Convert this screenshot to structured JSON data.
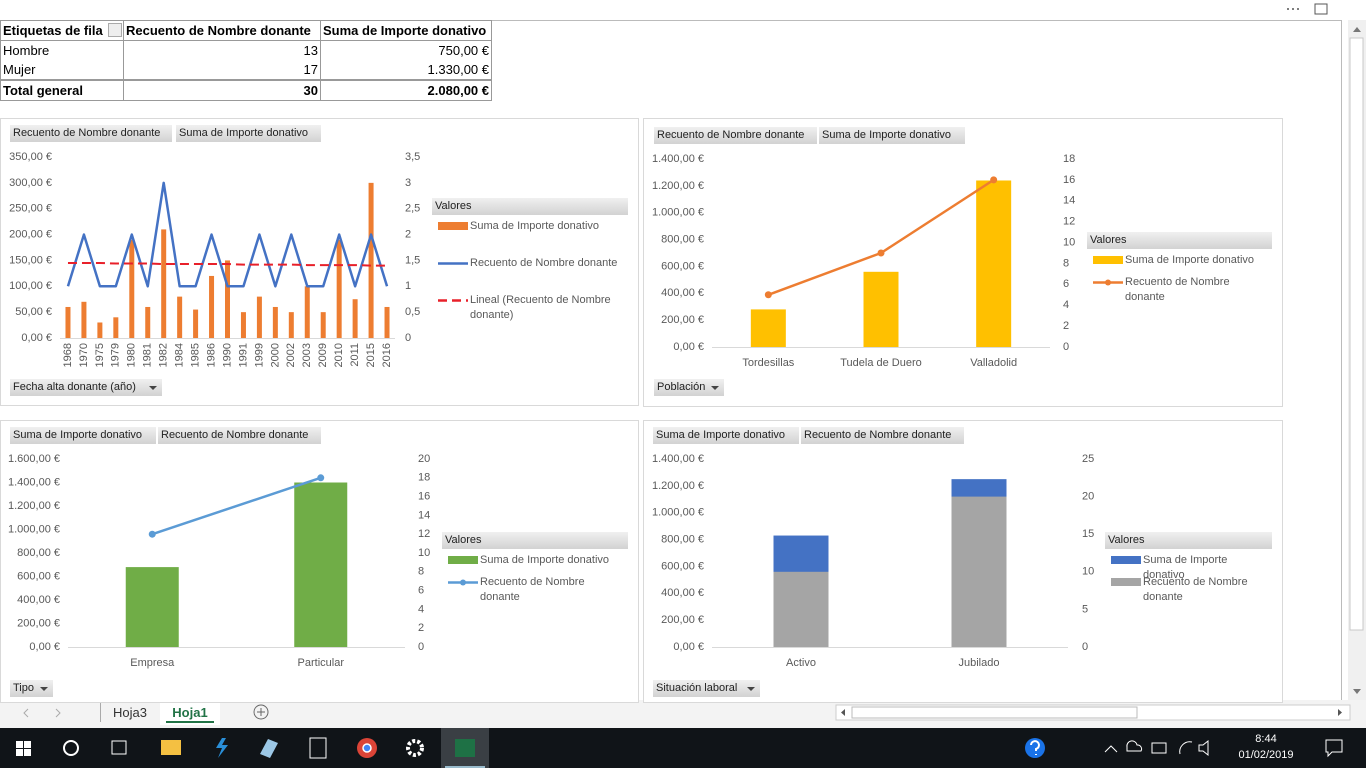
{
  "table": {
    "header": [
      "Etiquetas de fila",
      "Recuento de Nombre donante",
      "Suma de Importe donativo"
    ],
    "rows": [
      [
        "Hombre",
        "13",
        "750,00 €"
      ],
      [
        "Mujer",
        "17",
        "1.330,00 €"
      ],
      [
        "Total general",
        "30",
        "2.080,00 €"
      ]
    ]
  },
  "chart_data": [
    {
      "type": "combo",
      "field_buttons": [
        "Recuento de Nombre donante",
        "Suma de Importe donativo"
      ],
      "filter": "Fecha alta donante (año)",
      "legend_title": "Valores",
      "categories": [
        "1968",
        "1970",
        "1975",
        "1979",
        "1980",
        "1981",
        "1982",
        "1984",
        "1985",
        "1986",
        "1990",
        "1991",
        "1999",
        "2000",
        "2002",
        "2003",
        "2009",
        "2010",
        "2011",
        "2015",
        "2016"
      ],
      "series": [
        {
          "name": "Suma de Importe donativo",
          "type": "bar",
          "color": "#ed7d31",
          "axis": "y",
          "values": [
            60,
            70,
            30,
            40,
            190,
            60,
            210,
            80,
            55,
            120,
            150,
            50,
            80,
            60,
            50,
            100,
            50,
            190,
            75,
            300,
            60
          ]
        },
        {
          "name": "Recuento de Nombre donante",
          "type": "line",
          "color": "#4472c4",
          "axis": "y2",
          "values": [
            1,
            2,
            1,
            1,
            2,
            1,
            3,
            1,
            1,
            2,
            1,
            1,
            2,
            1,
            2,
            1,
            1,
            2,
            1,
            2,
            1
          ]
        },
        {
          "name": "Lineal (Recuento de Nombre donante)",
          "type": "line",
          "color": "#e8202a",
          "dash": true,
          "axis": "y2",
          "values": [
            1.45,
            1.45,
            1.45,
            1.44,
            1.44,
            1.44,
            1.43,
            1.43,
            1.43,
            1.43,
            1.43,
            1.42,
            1.42,
            1.42,
            1.42,
            1.41,
            1.41,
            1.41,
            1.41,
            1.4,
            1.4
          ]
        }
      ],
      "ylim": [
        0,
        350
      ],
      "yticks": [
        {
          "value": 0,
          "label": "0,00 €"
        },
        {
          "value": 50,
          "label": "50,00 €"
        },
        {
          "value": 100,
          "label": "100,00 €"
        },
        {
          "value": 150,
          "label": "150,00 €"
        },
        {
          "value": 200,
          "label": "200,00 €"
        },
        {
          "value": 250,
          "label": "250,00 €"
        },
        {
          "value": 300,
          "label": "300,00 €"
        },
        {
          "value": 350,
          "label": "350,00 €"
        }
      ],
      "y2lim": [
        0,
        3.5
      ],
      "y2ticks": [
        0,
        {
          "value": 0.5,
          "label": "0,5"
        },
        1,
        {
          "value": 1.5,
          "label": "1,5"
        },
        2,
        {
          "value": 2.5,
          "label": "2,5"
        },
        3,
        {
          "value": 3.5,
          "label": "3,5"
        }
      ]
    },
    {
      "type": "combo",
      "field_buttons": [
        "Recuento de Nombre donante",
        "Suma de Importe donativo"
      ],
      "filter": "Población",
      "legend_title": "Valores",
      "categories": [
        "Tordesillas",
        "Tudela de Duero",
        "Valladolid"
      ],
      "series": [
        {
          "name": "Suma de Importe donativo",
          "type": "bar",
          "color": "#ffc000",
          "axis": "y",
          "values": [
            280,
            560,
            1240
          ]
        },
        {
          "name": "Recuento de Nombre donante",
          "type": "line",
          "color": "#ed7d31",
          "marker": true,
          "axis": "y2",
          "values": [
            5,
            9,
            16
          ]
        }
      ],
      "ylim": [
        0,
        1400
      ],
      "yticks": [
        {
          "value": 0,
          "label": "0,00 €"
        },
        {
          "value": 200,
          "label": "200,00 €"
        },
        {
          "value": 400,
          "label": "400,00 €"
        },
        {
          "value": 600,
          "label": "600,00 €"
        },
        {
          "value": 800,
          "label": "800,00 €"
        },
        {
          "value": 1000,
          "label": "1.000,00 €"
        },
        {
          "value": 1200,
          "label": "1.200,00 €"
        },
        {
          "value": 1400,
          "label": "1.400,00 €"
        }
      ],
      "y2lim": [
        0,
        18
      ],
      "y2ticks": [
        0,
        2,
        4,
        6,
        8,
        10,
        12,
        14,
        16,
        18
      ]
    },
    {
      "type": "combo",
      "field_buttons": [
        "Suma de Importe donativo",
        "Recuento de Nombre donante"
      ],
      "filter": "Tipo",
      "legend_title": "Valores",
      "categories": [
        "Empresa",
        "Particular"
      ],
      "series": [
        {
          "name": "Suma de Importe donativo",
          "type": "bar",
          "color": "#70ad47",
          "axis": "y",
          "values": [
            680,
            1400
          ]
        },
        {
          "name": "Recuento de Nombre donante",
          "type": "line",
          "color": "#5b9bd5",
          "marker": true,
          "axis": "y2",
          "values": [
            12,
            18
          ]
        }
      ],
      "ylim": [
        0,
        1600
      ],
      "yticks": [
        {
          "value": 0,
          "label": "0,00 €"
        },
        {
          "value": 200,
          "label": "200,00 €"
        },
        {
          "value": 400,
          "label": "400,00 €"
        },
        {
          "value": 600,
          "label": "600,00 €"
        },
        {
          "value": 800,
          "label": "800,00 €"
        },
        {
          "value": 1000,
          "label": "1.000,00 €"
        },
        {
          "value": 1200,
          "label": "1.200,00 €"
        },
        {
          "value": 1400,
          "label": "1.400,00 €"
        },
        {
          "value": 1600,
          "label": "1.600,00 €"
        }
      ],
      "y2lim": [
        0,
        20
      ],
      "y2ticks": [
        0,
        2,
        4,
        6,
        8,
        10,
        12,
        14,
        16,
        18,
        20
      ]
    },
    {
      "type": "bar",
      "field_buttons": [
        "Suma de Importe donativo",
        "Recuento de Nombre donante"
      ],
      "filter": "Situación laboral",
      "legend_title": "Valores",
      "categories": [
        "Activo",
        "Jubilado"
      ],
      "series": [
        {
          "name": "Suma de Importe donativo",
          "type": "bar",
          "color": "#4472c4",
          "axis": "y",
          "values": [
            830,
            1250
          ]
        },
        {
          "name": "Recuento de Nombre donante",
          "type": "bar",
          "color": "#a5a5a5",
          "axis": "y2",
          "values": [
            10,
            20
          ]
        }
      ],
      "ylim": [
        0,
        1400
      ],
      "yticks": [
        {
          "value": 0,
          "label": "0,00 €"
        },
        {
          "value": 200,
          "label": "200,00 €"
        },
        {
          "value": 400,
          "label": "400,00 €"
        },
        {
          "value": 600,
          "label": "600,00 €"
        },
        {
          "value": 800,
          "label": "800,00 €"
        },
        {
          "value": 1000,
          "label": "1.000,00 €"
        },
        {
          "value": 1200,
          "label": "1.200,00 €"
        },
        {
          "value": 1400,
          "label": "1.400,00 €"
        }
      ],
      "y2lim": [
        0,
        25
      ],
      "y2ticks": [
        0,
        5,
        10,
        15,
        20,
        25
      ]
    }
  ],
  "tabs": [
    "Hoja3",
    "Hoja1"
  ],
  "taskbar": {
    "time": "8:44",
    "date": "01/02/2019"
  }
}
